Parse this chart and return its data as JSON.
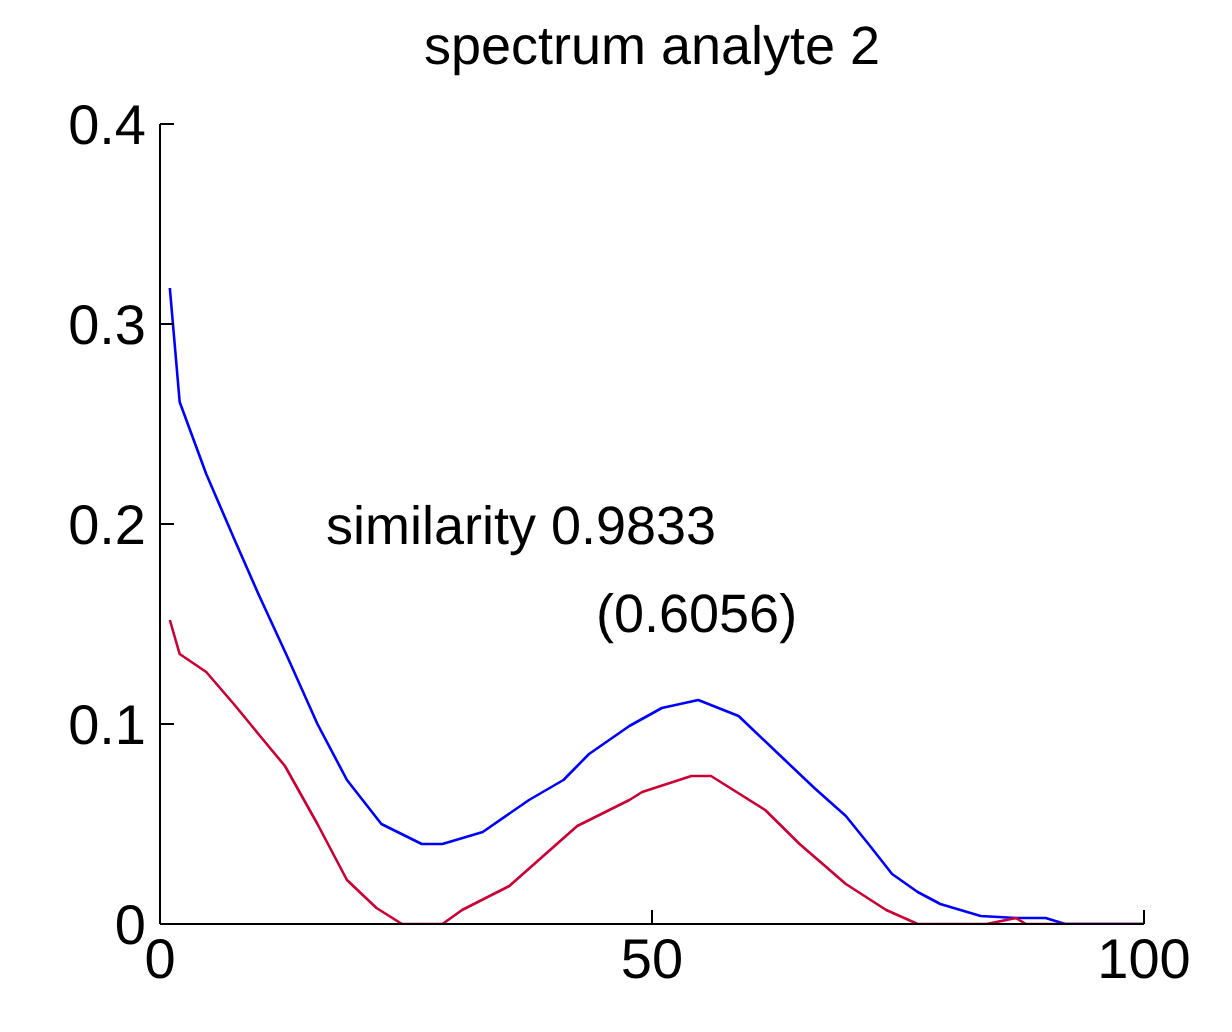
{
  "chart_data": {
    "type": "line",
    "title": "spectrum analyte 2",
    "annotations": [
      "similarity 0.9833",
      "(0.6056)"
    ],
    "xlim": [
      0,
      100
    ],
    "xticks": [
      0,
      50,
      100
    ],
    "ylim": [
      0,
      0.4
    ],
    "yticks": [
      0,
      0.1,
      0.2,
      0.3,
      0.4
    ],
    "grid": false,
    "legend": false,
    "marker": "none",
    "line_style": "solid",
    "series": [
      {
        "color": "#0000ff",
        "x": [
          1,
          2,
          4.7,
          7.5,
          10,
          13,
          16,
          19,
          22.5,
          26.6,
          28.7,
          32.8,
          37.5,
          41,
          43.6,
          47.7,
          51,
          54.7,
          58.8,
          63.5,
          66.5,
          69.7,
          72,
          74.4,
          77,
          79.3,
          83.4,
          87,
          90,
          92,
          97,
          100
        ],
        "values": [
          0.318,
          0.261,
          0.225,
          0.193,
          0.165,
          0.133,
          0.1,
          0.072,
          0.05,
          0.04,
          0.04,
          0.046,
          0.062,
          0.072,
          0.085,
          0.099,
          0.108,
          0.112,
          0.104,
          0.082,
          0.068,
          0.054,
          0.04,
          0.025,
          0.016,
          0.01,
          0.004,
          0.003,
          0.003,
          0,
          0,
          0
        ]
      },
      {
        "color": "#cc0033",
        "x": [
          1,
          2,
          4.7,
          7.5,
          10,
          12.7,
          16,
          19,
          22,
          24.6,
          28.7,
          30.7,
          35.5,
          42.4,
          47.7,
          49,
          54,
          56,
          61.5,
          65,
          69.7,
          73.8,
          77,
          84,
          87,
          88,
          97,
          100
        ],
        "values": [
          0.152,
          0.135,
          0.126,
          0.11,
          0.095,
          0.079,
          0.05,
          0.022,
          0.008,
          0,
          0,
          0.007,
          0.019,
          0.049,
          0.062,
          0.066,
          0.074,
          0.074,
          0.057,
          0.04,
          0.02,
          0.007,
          0,
          0,
          0.003,
          0,
          0,
          0
        ]
      }
    ]
  }
}
